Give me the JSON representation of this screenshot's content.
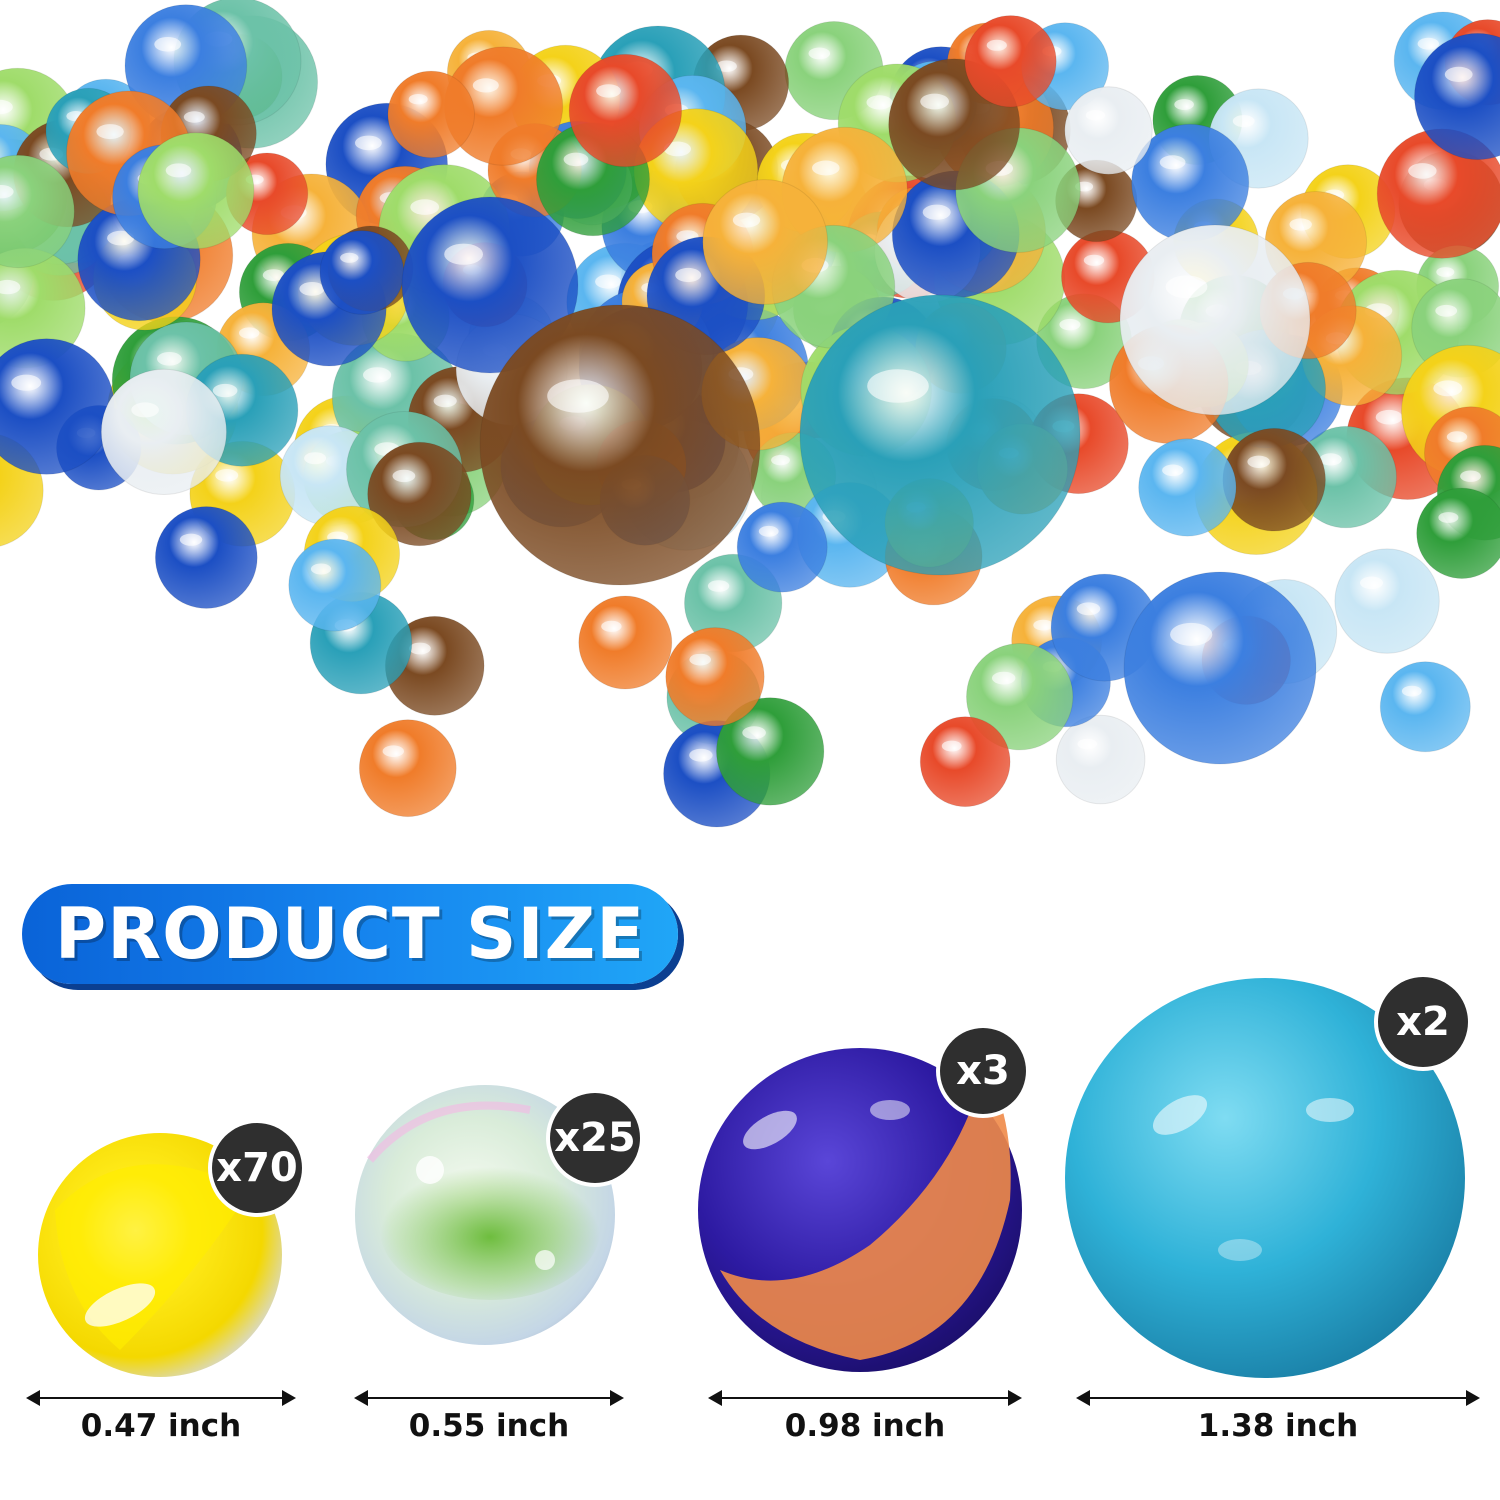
{
  "heading": "PRODUCT SIZE",
  "sizes": [
    {
      "count": "x70",
      "size": "0.47 inch"
    },
    {
      "count": "x25",
      "size": "0.55 inch"
    },
    {
      "count": "x3",
      "size": "0.98 inch"
    },
    {
      "count": "x2",
      "size": "1.38 inch"
    }
  ],
  "colors": {
    "heading_gradient_start": "#0a63d8",
    "heading_gradient_end": "#20a6f7",
    "badge": "#2f2f2f"
  }
}
